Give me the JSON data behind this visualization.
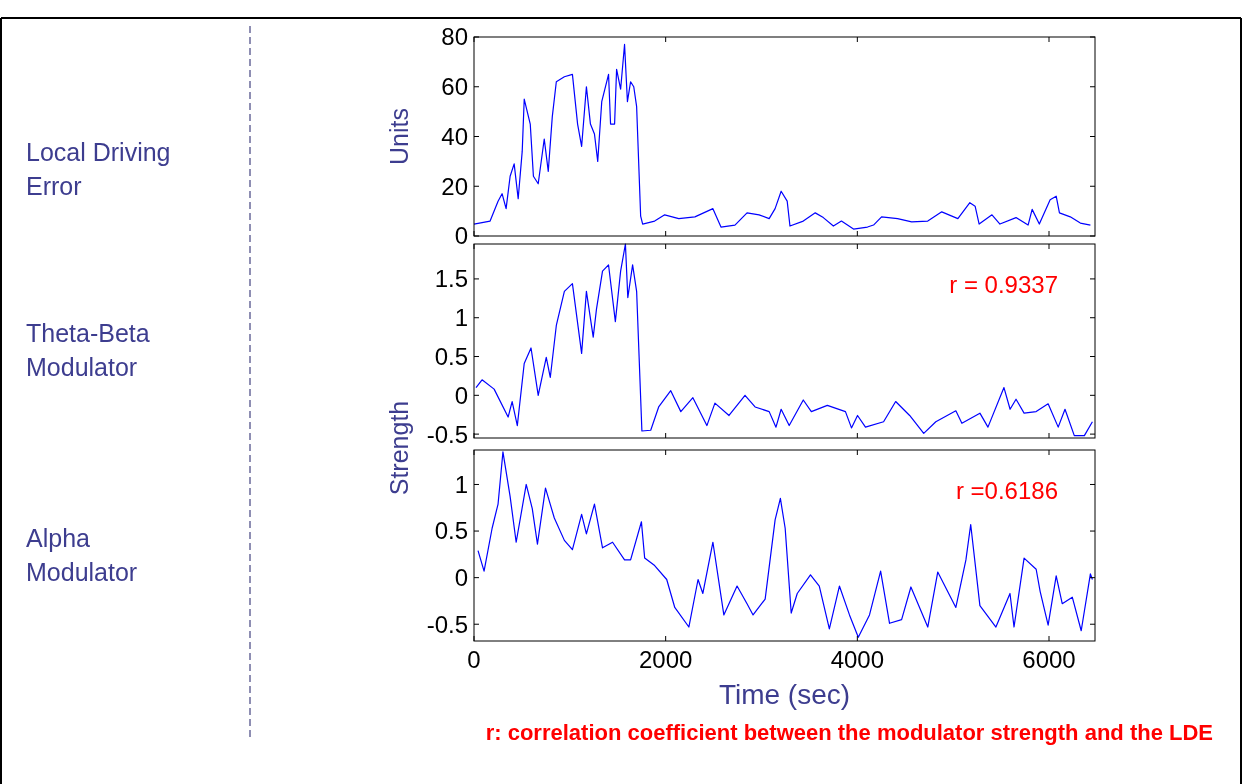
{
  "chart_data": [
    {
      "type": "line",
      "annotations": [
        "Local Driving Error"
      ],
      "ylabel": "Units",
      "xlim": [
        0,
        6480
      ],
      "ylim": [
        0,
        80
      ],
      "yticks": [
        0,
        20,
        40,
        60,
        80
      ],
      "xticks": [
        0,
        2000,
        4000,
        6000
      ],
      "tick_labels": "y",
      "grid": false,
      "marker": "none",
      "line_style": "solid",
      "series": [
        {
          "color": "#0000ff",
          "x": [
            0,
            168,
            251,
            293,
            335,
            377,
            419,
            461,
            503,
            524,
            587,
            620,
            670,
            733,
            775,
            817,
            859,
            943,
            1027,
            1081,
            1123,
            1173,
            1215,
            1257,
            1291,
            1333,
            1404,
            1425,
            1467,
            1488,
            1530,
            1571,
            1601,
            1634,
            1667,
            1697,
            1739,
            1760,
            1885,
            1990,
            2137,
            2305,
            2493,
            2577,
            2723,
            2849,
            2975,
            3080,
            3142,
            3205,
            3268,
            3297,
            3436,
            3561,
            3645,
            3750,
            3834,
            3960,
            4106,
            4169,
            4253,
            4420,
            4567,
            4735,
            4881,
            5049,
            5174,
            5229,
            5271,
            5405,
            5488,
            5656,
            5782,
            5824,
            5899,
            6012,
            6075,
            6109,
            6222,
            6327,
            6432
          ],
          "values": [
            4.8,
            6,
            14,
            17,
            11,
            24,
            29,
            15,
            34,
            55,
            45,
            24,
            21,
            39,
            26,
            48,
            62,
            64,
            65,
            45,
            36,
            60,
            45,
            41,
            30,
            54,
            65,
            45,
            45,
            67,
            59,
            77,
            54,
            62,
            60,
            52,
            8,
            4.8,
            6,
            8.5,
            7,
            7.7,
            11,
            3.6,
            4.4,
            9.3,
            8.5,
            7,
            11,
            18,
            14,
            4,
            6,
            9.3,
            7.4,
            4,
            6,
            2.8,
            3.6,
            4.4,
            7.7,
            7,
            5.7,
            6,
            9.7,
            7,
            13.4,
            12,
            4.8,
            8.5,
            4.8,
            7.4,
            4.4,
            10.7,
            4.8,
            14.6,
            16,
            9.3,
            7.7,
            5.2,
            4.4
          ]
        }
      ]
    },
    {
      "type": "line",
      "ylabel": "Strength",
      "annotations": [
        "Theta-Beta Modulator",
        "r = 0.9337"
      ],
      "xlim": [
        0,
        6480
      ],
      "ylim": [
        -0.55,
        1.95
      ],
      "yticks": [
        -0.5,
        0,
        0.5,
        1,
        1.5
      ],
      "xticks": [
        0,
        2000,
        4000,
        6000
      ],
      "tick_labels": "y",
      "grid": false,
      "marker": "none",
      "line_style": "solid",
      "series": [
        {
          "color": "#0000ff",
          "x": [
            21,
            84,
            210,
            356,
            398,
            452,
            524,
            595,
            670,
            754,
            796,
            859,
            943,
            1027,
            1123,
            1173,
            1244,
            1278,
            1341,
            1404,
            1475,
            1530,
            1580,
            1605,
            1655,
            1697,
            1752,
            1844,
            1927,
            2053,
            2158,
            2284,
            2430,
            2514,
            2661,
            2828,
            2933,
            3080,
            3151,
            3205,
            3289,
            3436,
            3520,
            3687,
            3876,
            3939,
            4002,
            4085,
            4274,
            4400,
            4546,
            4693,
            4819,
            5028,
            5091,
            5279,
            5363,
            5530,
            5594,
            5656,
            5740,
            5866,
            5991,
            6096,
            6167,
            6264,
            6369,
            6453
          ],
          "values": [
            0.1,
            0.2,
            0.08,
            -0.28,
            -0.08,
            -0.39,
            0.41,
            0.61,
            0,
            0.49,
            0.23,
            0.9,
            1.34,
            1.44,
            0.54,
            1.34,
            0.75,
            1.11,
            1.6,
            1.68,
            0.95,
            1.6,
            1.95,
            1.26,
            1.68,
            1.34,
            -0.46,
            -0.45,
            -0.15,
            0.06,
            -0.21,
            -0.03,
            -0.39,
            -0.1,
            -0.26,
            0,
            -0.15,
            -0.21,
            -0.41,
            -0.18,
            -0.39,
            -0.06,
            -0.21,
            -0.13,
            -0.21,
            -0.42,
            -0.26,
            -0.41,
            -0.34,
            -0.08,
            -0.26,
            -0.49,
            -0.34,
            -0.2,
            -0.36,
            -0.23,
            -0.41,
            0.1,
            -0.18,
            -0.05,
            -0.23,
            -0.21,
            -0.11,
            -0.41,
            -0.18,
            -0.52,
            -0.52,
            -0.34
          ]
        }
      ]
    },
    {
      "type": "line",
      "xlabel": "Time (sec)",
      "annotations": [
        "Alpha Modulator",
        "r =0.6186",
        "r: correlation coefficient between the modulator strength and the LDE"
      ],
      "xlim": [
        0,
        6480
      ],
      "ylim": [
        -0.68,
        1.37
      ],
      "yticks": [
        -0.5,
        0,
        0.5,
        1
      ],
      "xticks": [
        0,
        2000,
        4000,
        6000
      ],
      "grid": false,
      "marker": "none",
      "line_style": "solid",
      "series": [
        {
          "color": "#0000ff",
          "x": [
            42,
            105,
            189,
            251,
            302,
            377,
            440,
            545,
            608,
            662,
            746,
            838,
            943,
            1027,
            1123,
            1173,
            1257,
            1341,
            1446,
            1571,
            1634,
            1747,
            1781,
            1885,
            2011,
            2095,
            2242,
            2338,
            2388,
            2493,
            2607,
            2745,
            2849,
            2912,
            3038,
            3142,
            3197,
            3247,
            3310,
            3373,
            3511,
            3603,
            3708,
            3813,
            3918,
            4010,
            4127,
            4243,
            4336,
            4462,
            4559,
            4735,
            4839,
            5028,
            5133,
            5183,
            5279,
            5446,
            5593,
            5635,
            5740,
            5866,
            5908,
            5991,
            6075,
            6138,
            6243,
            6336,
            6432,
            6453
          ],
          "values": [
            0.29,
            0.07,
            0.53,
            0.79,
            1.35,
            0.87,
            0.38,
            1.0,
            0.74,
            0.36,
            0.96,
            0.64,
            0.4,
            0.3,
            0.68,
            0.47,
            0.79,
            0.32,
            0.38,
            0.19,
            0.19,
            0.6,
            0.21,
            0.13,
            -0.02,
            -0.32,
            -0.53,
            -0.02,
            -0.17,
            0.38,
            -0.4,
            -0.09,
            -0.28,
            -0.4,
            -0.23,
            0.62,
            0.85,
            0.53,
            -0.38,
            -0.17,
            0.03,
            -0.09,
            -0.55,
            -0.09,
            -0.4,
            -0.64,
            -0.4,
            0.07,
            -0.49,
            -0.45,
            -0.1,
            -0.53,
            0.06,
            -0.32,
            0.19,
            0.57,
            -0.3,
            -0.53,
            -0.17,
            -0.53,
            0.21,
            0.09,
            -0.15,
            -0.51,
            0.02,
            -0.28,
            -0.21,
            -0.57,
            0.04,
            -0.02
          ]
        }
      ]
    }
  ]
}
